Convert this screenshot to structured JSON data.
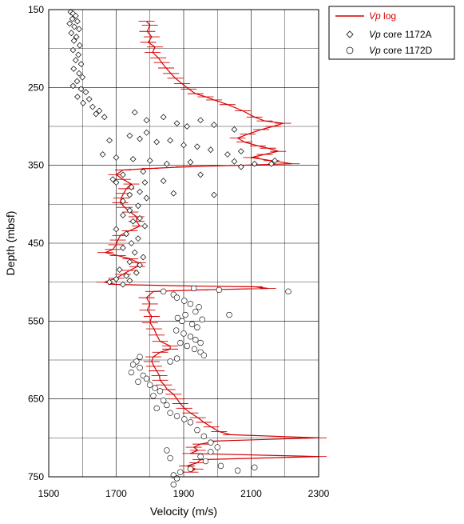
{
  "chart_data": {
    "type": "scatter",
    "title": "",
    "xlabel": "Velocity (m/s)",
    "ylabel": "Depth (mbsf)",
    "xlim": [
      1500,
      2300
    ],
    "ylim": [
      750,
      150
    ],
    "y_inverted": true,
    "grid": true,
    "legend_position": "top-right outside",
    "x_ticks": [
      "1500",
      "1700",
      "1900",
      "2100",
      "2300"
    ],
    "y_ticks": [
      "150",
      "250",
      "350",
      "450",
      "550",
      "650",
      "750"
    ],
    "colors": {
      "log": "#d40000",
      "core": "#000000"
    },
    "legend": [
      {
        "prefix": "Vp",
        "suffix": " log",
        "symbol": "line",
        "color": "#d40000"
      },
      {
        "prefix": "Vp",
        "suffix": " core 1172A",
        "symbol": "diamond",
        "color": "#000000"
      },
      {
        "prefix": "Vp",
        "suffix": " core 1172D",
        "symbol": "circle",
        "color": "#000000"
      }
    ],
    "series": [
      {
        "name": "Vp log",
        "marker": "line",
        "points": [
          [
            1790,
            165
          ],
          [
            1800,
            170
          ],
          [
            1792,
            178
          ],
          [
            1805,
            185
          ],
          [
            1795,
            192
          ],
          [
            1815,
            198
          ],
          [
            1808,
            205
          ],
          [
            1825,
            212
          ],
          [
            1835,
            218
          ],
          [
            1848,
            225
          ],
          [
            1862,
            232
          ],
          [
            1875,
            238
          ],
          [
            1895,
            245
          ],
          [
            1915,
            252
          ],
          [
            1935,
            258
          ],
          [
            1965,
            262
          ],
          [
            1990,
            266
          ],
          [
            2030,
            272
          ],
          [
            2075,
            280
          ],
          [
            2110,
            288
          ],
          [
            2140,
            293
          ],
          [
            2195,
            296
          ],
          [
            2165,
            300
          ],
          [
            2130,
            304
          ],
          [
            2090,
            310
          ],
          [
            2060,
            315
          ],
          [
            2080,
            320
          ],
          [
            2120,
            325
          ],
          [
            2150,
            328
          ],
          [
            2180,
            332
          ],
          [
            2140,
            336
          ],
          [
            2100,
            340
          ],
          [
            2160,
            344
          ],
          [
            2220,
            348
          ],
          [
            2060,
            350
          ],
          [
            1900,
            352
          ],
          [
            1800,
            354
          ],
          [
            1720,
            356
          ],
          [
            1700,
            362
          ],
          [
            1720,
            368
          ],
          [
            1745,
            374
          ],
          [
            1730,
            380
          ],
          [
            1722,
            386
          ],
          [
            1715,
            392
          ],
          [
            1712,
            398
          ],
          [
            1725,
            404
          ],
          [
            1742,
            410
          ],
          [
            1760,
            416
          ],
          [
            1760,
            422
          ],
          [
            1770,
            428
          ],
          [
            1740,
            434
          ],
          [
            1712,
            440
          ],
          [
            1705,
            446
          ],
          [
            1700,
            452
          ],
          [
            1690,
            458
          ],
          [
            1668,
            462
          ],
          [
            1705,
            466
          ],
          [
            1742,
            470
          ],
          [
            1765,
            475
          ],
          [
            1762,
            480
          ],
          [
            1740,
            485
          ],
          [
            1720,
            490
          ],
          [
            1700,
            495
          ],
          [
            1665,
            500
          ],
          [
            1700,
            503
          ],
          [
            1920,
            505
          ],
          [
            2110,
            506
          ],
          [
            2150,
            508
          ],
          [
            1950,
            510
          ],
          [
            1810,
            512
          ],
          [
            1790,
            520
          ],
          [
            1800,
            528
          ],
          [
            1792,
            536
          ],
          [
            1805,
            544
          ],
          [
            1800,
            552
          ],
          [
            1812,
            560
          ],
          [
            1820,
            568
          ],
          [
            1830,
            576
          ],
          [
            1860,
            582
          ],
          [
            1860,
            586
          ],
          [
            1830,
            590
          ],
          [
            1810,
            596
          ],
          [
            1805,
            602
          ],
          [
            1812,
            608
          ],
          [
            1820,
            614
          ],
          [
            1828,
            620
          ],
          [
            1830,
            626
          ],
          [
            1842,
            632
          ],
          [
            1852,
            638
          ],
          [
            1870,
            644
          ],
          [
            1880,
            650
          ],
          [
            1890,
            656
          ],
          [
            1902,
            662
          ],
          [
            1920,
            668
          ],
          [
            1942,
            674
          ],
          [
            1960,
            680
          ],
          [
            1982,
            686
          ],
          [
            2005,
            692
          ],
          [
            2040,
            696
          ],
          [
            2300,
            700
          ],
          [
            2000,
            704
          ],
          [
            1950,
            708
          ],
          [
            1930,
            712
          ],
          [
            1942,
            716
          ],
          [
            1920,
            720
          ],
          [
            2300,
            724
          ],
          [
            1950,
            728
          ],
          [
            1940,
            732
          ],
          [
            1910,
            736
          ],
          [
            1935,
            740
          ],
          [
            1920,
            744
          ]
        ]
      },
      {
        "name": "Vp core 1172A",
        "marker": "diamond",
        "points": [
          [
            1565,
            153
          ],
          [
            1572,
            155
          ],
          [
            1580,
            158
          ],
          [
            1570,
            162
          ],
          [
            1585,
            165
          ],
          [
            1562,
            168
          ],
          [
            1576,
            172
          ],
          [
            1590,
            175
          ],
          [
            1567,
            180
          ],
          [
            1582,
            185
          ],
          [
            1575,
            190
          ],
          [
            1592,
            196
          ],
          [
            1572,
            202
          ],
          [
            1588,
            208
          ],
          [
            1580,
            215
          ],
          [
            1596,
            220
          ],
          [
            1574,
            226
          ],
          [
            1590,
            232
          ],
          [
            1600,
            237
          ],
          [
            1584,
            242
          ],
          [
            1572,
            248
          ],
          [
            1596,
            252
          ],
          [
            1610,
            256
          ],
          [
            1585,
            262
          ],
          [
            1620,
            265
          ],
          [
            1602,
            270
          ],
          [
            1630,
            275
          ],
          [
            1650,
            280
          ],
          [
            1640,
            284
          ],
          [
            1665,
            288
          ],
          [
            1755,
            282
          ],
          [
            1790,
            292
          ],
          [
            1840,
            288
          ],
          [
            1880,
            296
          ],
          [
            1910,
            300
          ],
          [
            1950,
            292
          ],
          [
            1990,
            298
          ],
          [
            2050,
            304
          ],
          [
            1790,
            308
          ],
          [
            1740,
            312
          ],
          [
            1680,
            318
          ],
          [
            1770,
            316
          ],
          [
            1820,
            320
          ],
          [
            1860,
            318
          ],
          [
            1900,
            324
          ],
          [
            1940,
            326
          ],
          [
            1980,
            330
          ],
          [
            2030,
            336
          ],
          [
            2070,
            332
          ],
          [
            1660,
            336
          ],
          [
            1700,
            340
          ],
          [
            1750,
            342
          ],
          [
            1800,
            344
          ],
          [
            1850,
            348
          ],
          [
            1920,
            346
          ],
          [
            2050,
            345
          ],
          [
            2070,
            352
          ],
          [
            2110,
            348
          ],
          [
            2160,
            348
          ],
          [
            2170,
            344
          ],
          [
            1780,
            358
          ],
          [
            1720,
            362
          ],
          [
            1690,
            368
          ],
          [
            1700,
            372
          ],
          [
            1745,
            378
          ],
          [
            1785,
            372
          ],
          [
            1840,
            370
          ],
          [
            1770,
            384
          ],
          [
            1740,
            388
          ],
          [
            1790,
            392
          ],
          [
            1720,
            396
          ],
          [
            1765,
            402
          ],
          [
            1740,
            408
          ],
          [
            1720,
            414
          ],
          [
            1770,
            418
          ],
          [
            1750,
            422
          ],
          [
            1785,
            428
          ],
          [
            1700,
            432
          ],
          [
            1730,
            438
          ],
          [
            1765,
            444
          ],
          [
            1745,
            450
          ],
          [
            1720,
            456
          ],
          [
            1755,
            462
          ],
          [
            1780,
            468
          ],
          [
            1740,
            474
          ],
          [
            1770,
            478
          ],
          [
            1710,
            484
          ],
          [
            1760,
            488
          ],
          [
            1730,
            492
          ],
          [
            1700,
            496
          ],
          [
            1680,
            500
          ],
          [
            1720,
            503
          ],
          [
            1740,
            498
          ],
          [
            1870,
            386
          ],
          [
            1990,
            388
          ],
          [
            1950,
            362
          ]
        ]
      },
      {
        "name": "Vp core 1172D",
        "marker": "circle",
        "points": [
          [
            1840,
            512
          ],
          [
            1870,
            516
          ],
          [
            1880,
            520
          ],
          [
            1902,
            524
          ],
          [
            1920,
            528
          ],
          [
            1945,
            532
          ],
          [
            1935,
            538
          ],
          [
            1905,
            542
          ],
          [
            1882,
            546
          ],
          [
            1895,
            550
          ],
          [
            1925,
            554
          ],
          [
            1955,
            548
          ],
          [
            1940,
            558
          ],
          [
            1878,
            562
          ],
          [
            1900,
            566
          ],
          [
            1920,
            570
          ],
          [
            1935,
            574
          ],
          [
            1890,
            578
          ],
          [
            1910,
            582
          ],
          [
            1932,
            586
          ],
          [
            1950,
            590
          ],
          [
            1960,
            594
          ],
          [
            1880,
            598
          ],
          [
            1860,
            602
          ],
          [
            1770,
            596
          ],
          [
            1760,
            602
          ],
          [
            1750,
            606
          ],
          [
            1770,
            610
          ],
          [
            1745,
            616
          ],
          [
            1780,
            620
          ],
          [
            1790,
            624
          ],
          [
            1765,
            628
          ],
          [
            1800,
            632
          ],
          [
            1815,
            636
          ],
          [
            1830,
            640
          ],
          [
            1810,
            646
          ],
          [
            1840,
            652
          ],
          [
            1850,
            658
          ],
          [
            1820,
            662
          ],
          [
            1860,
            668
          ],
          [
            1880,
            672
          ],
          [
            1902,
            676
          ],
          [
            1920,
            680
          ],
          [
            1940,
            690
          ],
          [
            1960,
            698
          ],
          [
            1980,
            706
          ],
          [
            2000,
            712
          ],
          [
            1980,
            718
          ],
          [
            1950,
            724
          ],
          [
            1965,
            730
          ],
          [
            2010,
            736
          ],
          [
            1920,
            740
          ],
          [
            1890,
            744
          ],
          [
            1870,
            748
          ],
          [
            2060,
            742
          ],
          [
            2110,
            738
          ],
          [
            1850,
            716
          ],
          [
            1860,
            726
          ],
          [
            1880,
            752
          ],
          [
            1870,
            760
          ],
          [
            1930,
            508
          ],
          [
            2005,
            510
          ],
          [
            2210,
            512
          ],
          [
            2035,
            542
          ],
          [
            1950,
            578
          ]
        ]
      }
    ]
  }
}
